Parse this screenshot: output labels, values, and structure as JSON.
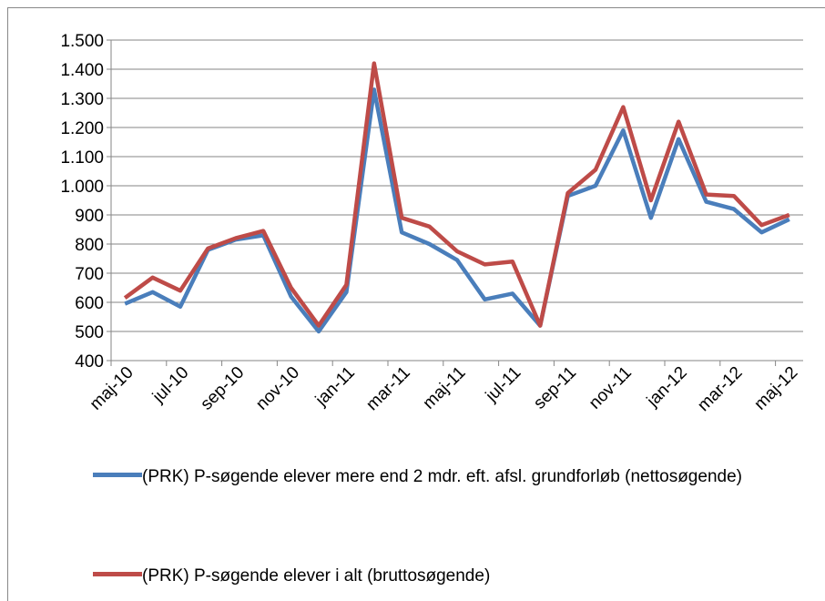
{
  "chart_data": {
    "type": "line",
    "categories": [
      "maj-10",
      null,
      "jul-10",
      null,
      "sep-10",
      null,
      "nov-10",
      null,
      "jan-11",
      null,
      "mar-11",
      null,
      "maj-11",
      null,
      "jul-11",
      null,
      "sep-11",
      null,
      "nov-11",
      null,
      "jan-12",
      null,
      "mar-12",
      null,
      "maj-12"
    ],
    "series": [
      {
        "name": "(PRK) P-søgende elever mere end 2 mdr. eft. afsl. grundforløb (nettosøgende)",
        "color": "#4a7ebb",
        "values": [
          595,
          635,
          585,
          780,
          815,
          830,
          620,
          500,
          635,
          1330,
          840,
          800,
          745,
          610,
          630,
          520,
          965,
          1000,
          1190,
          890,
          1160,
          945,
          920,
          840,
          885
        ]
      },
      {
        "name": "(PRK) P-søgende elever i alt (bruttosøgende)",
        "color": "#be4b48",
        "values": [
          615,
          685,
          640,
          785,
          820,
          845,
          650,
          520,
          660,
          1420,
          890,
          860,
          775,
          730,
          740,
          520,
          975,
          1055,
          1270,
          950,
          1220,
          970,
          965,
          865,
          900
        ]
      }
    ],
    "ylim": [
      400,
      1500
    ],
    "yticks": [
      400,
      500,
      600,
      700,
      800,
      900,
      {
        "value": 1000,
        "label": "1.000"
      },
      {
        "value": 1100,
        "label": "1.100"
      },
      {
        "value": 1200,
        "label": "1.200"
      },
      {
        "value": 1300,
        "label": "1.300"
      },
      {
        "value": 1400,
        "label": "1.400"
      },
      {
        "value": 1500,
        "label": "1.500"
      }
    ],
    "grid": true
  }
}
